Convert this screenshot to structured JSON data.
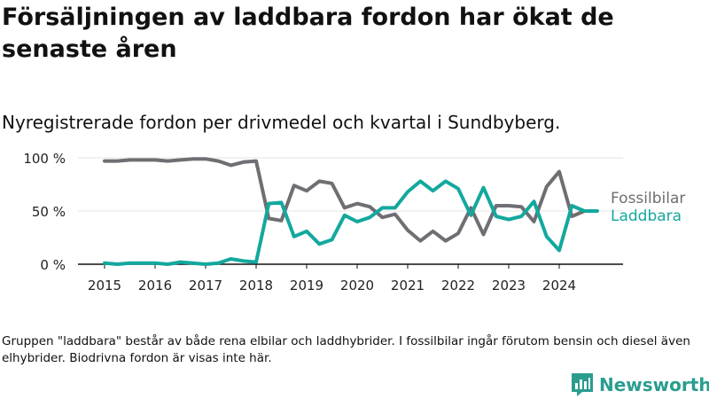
{
  "header": {
    "title": "Försäljningen av laddbara fordon har ökat de senaste åren",
    "subtitle": "Nyregistrerade fordon per drivmedel och kvartal i Sundbyberg."
  },
  "footer": {
    "note": "Gruppen \"laddbara\" består av både rena elbilar och laddhybrider. I fossilbilar ingår förutom bensin och diesel även elhybrider. Biodrivna fordon är visas inte här.",
    "brand": "Newsworthy"
  },
  "colors": {
    "fossil": "#6e6e73",
    "ladd": "#13a89e",
    "grid": "#e4e4e4",
    "axis": "#111111"
  },
  "chart_data": {
    "type": "line",
    "title": "Nyregistrerade fordon per drivmedel och kvartal i Sundbyberg.",
    "xlabel": "",
    "ylabel": "",
    "ylim": [
      0,
      100
    ],
    "yticks": [
      0,
      50,
      100
    ],
    "ytick_labels": [
      "0 %",
      "50 %",
      "100 %"
    ],
    "xticks": [
      2015,
      2016,
      2017,
      2018,
      2019,
      2020,
      2021,
      2022,
      2023,
      2024
    ],
    "xtick_labels": [
      "2015",
      "2016",
      "2017",
      "2018",
      "2019",
      "2020",
      "2021",
      "2022",
      "2023",
      "2024"
    ],
    "x": [
      2015.0,
      2015.25,
      2015.5,
      2015.75,
      2016.0,
      2016.25,
      2016.5,
      2016.75,
      2017.0,
      2017.25,
      2017.5,
      2017.75,
      2018.0,
      2018.25,
      2018.5,
      2018.75,
      2019.0,
      2019.25,
      2019.5,
      2019.75,
      2020.0,
      2020.25,
      2020.5,
      2020.75,
      2021.0,
      2021.25,
      2021.5,
      2021.75,
      2022.0,
      2022.25,
      2022.5,
      2022.75,
      2023.0,
      2023.25,
      2023.5,
      2023.75,
      2024.0,
      2024.25,
      2024.5,
      2024.75
    ],
    "series": [
      {
        "name": "Fossilbilar",
        "values": [
          97,
          97,
          98,
          98,
          98,
          97,
          98,
          99,
          99,
          97,
          93,
          96,
          97,
          43,
          41,
          74,
          69,
          78,
          76,
          53,
          57,
          54,
          44,
          47,
          32,
          22,
          31,
          22,
          29,
          53,
          28,
          55,
          55,
          54,
          40,
          73,
          87,
          45,
          50,
          50
        ]
      },
      {
        "name": "Laddbara",
        "values": [
          1,
          0,
          1,
          1,
          1,
          0,
          2,
          1,
          0,
          1,
          5,
          3,
          2,
          57,
          58,
          26,
          31,
          19,
          23,
          46,
          40,
          44,
          53,
          53,
          68,
          78,
          69,
          78,
          71,
          46,
          72,
          45,
          42,
          45,
          59,
          26,
          13,
          55,
          50,
          50
        ]
      }
    ]
  }
}
